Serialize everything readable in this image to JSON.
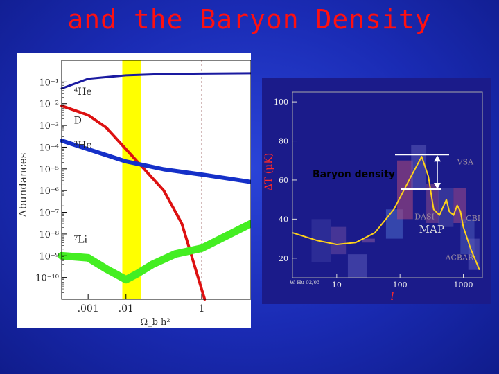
{
  "slide": {
    "title": "and the Baryon Density",
    "callout": "Baryon density"
  },
  "chart_data": [
    {
      "type": "line",
      "ylabel": "Abundances",
      "xlabel": "Ω_b h²",
      "x_scale": "log",
      "y_scale": "log",
      "xlim": [
        0.0002,
        20
      ],
      "ylim": [
        1e-11,
        1
      ],
      "x_ticks": [
        0.001,
        0.01,
        1
      ],
      "x_tick_labels": [
        ".001",
        ".01",
        "1"
      ],
      "y_ticks": [
        0.1,
        0.01,
        0.001,
        0.0001,
        1e-05,
        1e-06,
        1e-07,
        1e-08,
        1e-09,
        1e-10
      ],
      "y_tick_labels": [
        "10⁻¹",
        "10⁻²",
        "10⁻³",
        "10⁻⁴",
        "10⁻⁵",
        "10⁻⁶",
        "10⁻⁷",
        "10⁻⁸",
        "10⁻⁹",
        "10⁻¹⁰"
      ],
      "band": {
        "x": [
          0.008,
          0.025
        ],
        "color": "#ffff00"
      },
      "dashed_vline_x": 1,
      "series": [
        {
          "name": "⁴He",
          "color": "#1a1aa0",
          "x": [
            0.0002,
            0.001,
            0.01,
            0.1,
            1,
            20
          ],
          "y": [
            0.05,
            0.14,
            0.2,
            0.23,
            0.24,
            0.25
          ]
        },
        {
          "name": "D",
          "color": "#dd1111",
          "x": [
            0.0002,
            0.001,
            0.003,
            0.01,
            0.03,
            0.1,
            0.3,
            1.2
          ],
          "y": [
            0.008,
            0.003,
            0.0008,
            8e-05,
            1e-05,
            1e-06,
            3e-08,
            1e-11
          ]
        },
        {
          "name": "³He",
          "color": "#1530c8",
          "x": [
            0.0002,
            0.001,
            0.01,
            0.1,
            1,
            20
          ],
          "y": [
            0.0002,
            8e-05,
            2.2e-05,
            9.5e-06,
            5.5e-06,
            2.5e-06
          ]
        },
        {
          "name": "⁷Li",
          "color": "#44ee22",
          "x": [
            0.0002,
            0.001,
            0.003,
            0.01,
            0.02,
            0.05,
            0.2,
            1,
            20
          ],
          "y": [
            1e-09,
            8e-10,
            2.5e-10,
            8e-11,
            1.5e-10,
            4e-10,
            1.2e-09,
            2.2e-09,
            3e-08
          ]
        }
      ]
    },
    {
      "type": "line",
      "ylabel": "ΔT (μK)",
      "xlabel": "l",
      "x_scale": "log",
      "xlim": [
        2,
        2000
      ],
      "ylim": [
        10,
        105
      ],
      "x_ticks": [
        10,
        100,
        1000
      ],
      "x_tick_labels": [
        "10",
        "100",
        "1000"
      ],
      "y_ticks": [
        20,
        40,
        60,
        80,
        100
      ],
      "y_tick_labels": [
        "20",
        "40",
        "60",
        "80",
        "100"
      ],
      "credit": "W. Hu 02/03",
      "experiment_labels": [
        "VSA",
        "DASI",
        "CBI",
        "MAP",
        "ACBAR"
      ],
      "series": [
        {
          "name": "",
          "color": "#ffd21a",
          "x": [
            2,
            5,
            10,
            20,
            40,
            80,
            150,
            220,
            280,
            340,
            420,
            540,
            600,
            700,
            800,
            900,
            1000,
            1300,
            1800
          ],
          "y": [
            33,
            29,
            27,
            28,
            33,
            45,
            62,
            72,
            62,
            45,
            42,
            50,
            44,
            42,
            47,
            44,
            36,
            25,
            14
          ]
        }
      ]
    }
  ]
}
